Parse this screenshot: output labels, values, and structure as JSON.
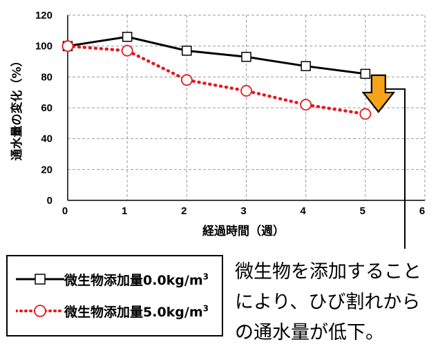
{
  "chart_data": {
    "type": "line",
    "xlabel": "経過時間（週）",
    "ylabel": "通水量の変化（%）",
    "xlim": [
      0,
      6
    ],
    "ylim": [
      0,
      120
    ],
    "xticks": [
      "0",
      "1",
      "2",
      "3",
      "4",
      "5",
      "6"
    ],
    "yticks": [
      "0",
      "20",
      "40",
      "60",
      "80",
      "100",
      "120"
    ],
    "grid": true,
    "series": [
      {
        "name": "微生物添加量0.0kg/m",
        "color": "#000000",
        "line": "solid",
        "marker": "square",
        "x": [
          0,
          1,
          2,
          3,
          4,
          5
        ],
        "values": [
          100,
          106,
          97,
          93,
          87,
          82
        ]
      },
      {
        "name": "微生物添加量5.0kg/m",
        "color": "#e8161b",
        "line": "dotted",
        "marker": "circle",
        "x": [
          0,
          1,
          2,
          3,
          4,
          5
        ],
        "values": [
          100,
          97,
          78,
          71,
          62,
          56
        ]
      }
    ]
  },
  "legend": {
    "items": [
      {
        "label": "微生物添加量0.0kg/m",
        "unit_sup": "3"
      },
      {
        "label": "微生物添加量5.0kg/m",
        "unit_sup": "3"
      }
    ]
  },
  "annotation": {
    "lines": [
      "微生物を添加すること",
      "により、ひび割れから",
      "の通水量が低下。"
    ],
    "arrow_color": "#f5a31a"
  }
}
